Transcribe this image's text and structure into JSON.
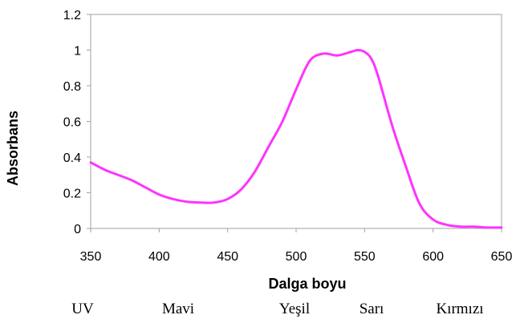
{
  "chart_data": {
    "type": "line",
    "title": "",
    "xlabel": "Dalga boyu",
    "ylabel": "Absorbans",
    "xlim": [
      350,
      650
    ],
    "ylim": [
      0,
      1.2
    ],
    "x_ticks": [
      "350",
      "400",
      "450",
      "500",
      "550",
      "600",
      "650"
    ],
    "y_ticks": [
      "0",
      "0.2",
      "0.4",
      "0.6",
      "0.8",
      "1",
      "1.2"
    ],
    "grid": false,
    "legend": "none",
    "line_color": "#ff33ff",
    "series": [
      {
        "x": [
          350,
          360,
          370,
          380,
          390,
          400,
          410,
          420,
          430,
          440,
          450,
          460,
          470,
          480,
          490,
          500,
          510,
          520,
          530,
          540,
          545,
          550,
          555,
          560,
          570,
          580,
          590,
          600,
          610,
          620,
          630,
          640,
          650
        ],
        "y": [
          0.37,
          0.33,
          0.3,
          0.27,
          0.23,
          0.19,
          0.165,
          0.15,
          0.145,
          0.145,
          0.165,
          0.22,
          0.32,
          0.46,
          0.6,
          0.78,
          0.94,
          0.98,
          0.97,
          0.99,
          1.0,
          0.99,
          0.95,
          0.85,
          0.58,
          0.35,
          0.14,
          0.05,
          0.02,
          0.01,
          0.01,
          0.005,
          0.005
        ]
      }
    ],
    "band_labels": [
      "UV",
      "Mavi",
      "Yeşil",
      "Sarı",
      "Kırmızı"
    ]
  }
}
